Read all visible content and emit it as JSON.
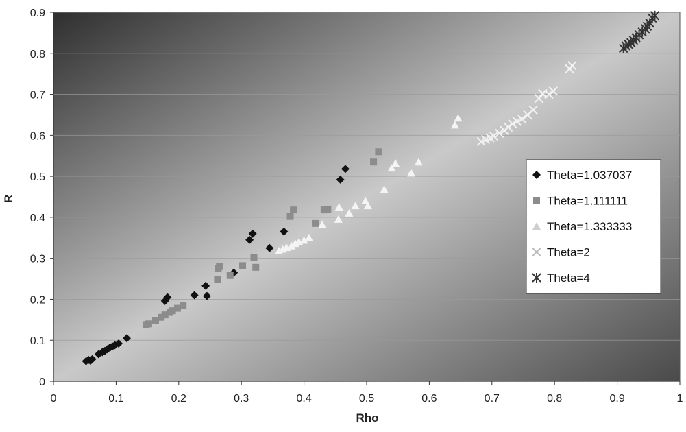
{
  "chart_data": {
    "type": "scatter",
    "xlabel": "Rho",
    "ylabel": "R",
    "xlim": [
      0,
      1
    ],
    "ylim": [
      0,
      0.9
    ],
    "x_ticks": [
      "0",
      "0.1",
      "0.2",
      "0.3",
      "0.4",
      "0.5",
      "0.6",
      "0.7",
      "0.8",
      "0.9",
      "1"
    ],
    "y_ticks": [
      "0",
      "0.1",
      "0.2",
      "0.3",
      "0.4",
      "0.5",
      "0.6",
      "0.7",
      "0.8",
      "0.9"
    ],
    "grid": "horizontal",
    "legend_position": "right",
    "series": [
      {
        "name": "Theta=1.037037",
        "marker": "diamond",
        "color": "#111111",
        "points": [
          [
            0.052,
            0.049
          ],
          [
            0.056,
            0.052
          ],
          [
            0.059,
            0.05
          ],
          [
            0.062,
            0.054
          ],
          [
            0.072,
            0.066
          ],
          [
            0.078,
            0.071
          ],
          [
            0.082,
            0.074
          ],
          [
            0.086,
            0.078
          ],
          [
            0.09,
            0.082
          ],
          [
            0.094,
            0.085
          ],
          [
            0.098,
            0.088
          ],
          [
            0.104,
            0.092
          ],
          [
            0.117,
            0.105
          ],
          [
            0.178,
            0.196
          ],
          [
            0.182,
            0.205
          ],
          [
            0.225,
            0.21
          ],
          [
            0.243,
            0.233
          ],
          [
            0.245,
            0.208
          ],
          [
            0.288,
            0.265
          ],
          [
            0.313,
            0.345
          ],
          [
            0.318,
            0.36
          ],
          [
            0.345,
            0.325
          ],
          [
            0.368,
            0.365
          ],
          [
            0.458,
            0.492
          ],
          [
            0.466,
            0.518
          ]
        ]
      },
      {
        "name": "Theta=1.111111",
        "marker": "square",
        "color": "#8c8c8c",
        "points": [
          [
            0.148,
            0.138
          ],
          [
            0.152,
            0.14
          ],
          [
            0.163,
            0.148
          ],
          [
            0.172,
            0.156
          ],
          [
            0.178,
            0.162
          ],
          [
            0.186,
            0.168
          ],
          [
            0.19,
            0.172
          ],
          [
            0.198,
            0.178
          ],
          [
            0.207,
            0.185
          ],
          [
            0.262,
            0.248
          ],
          [
            0.263,
            0.275
          ],
          [
            0.265,
            0.28
          ],
          [
            0.282,
            0.258
          ],
          [
            0.302,
            0.282
          ],
          [
            0.32,
            0.302
          ],
          [
            0.323,
            0.278
          ],
          [
            0.378,
            0.402
          ],
          [
            0.383,
            0.418
          ],
          [
            0.418,
            0.385
          ],
          [
            0.432,
            0.418
          ],
          [
            0.438,
            0.42
          ],
          [
            0.511,
            0.535
          ],
          [
            0.519,
            0.56
          ]
        ]
      },
      {
        "name": "Theta=1.333333",
        "marker": "triangle",
        "color": "#f4f4f4",
        "points": [
          [
            0.36,
            0.318
          ],
          [
            0.366,
            0.322
          ],
          [
            0.372,
            0.326
          ],
          [
            0.38,
            0.33
          ],
          [
            0.386,
            0.336
          ],
          [
            0.392,
            0.34
          ],
          [
            0.4,
            0.344
          ],
          [
            0.408,
            0.35
          ],
          [
            0.429,
            0.382
          ],
          [
            0.455,
            0.395
          ],
          [
            0.456,
            0.425
          ],
          [
            0.472,
            0.41
          ],
          [
            0.482,
            0.428
          ],
          [
            0.498,
            0.44
          ],
          [
            0.502,
            0.428
          ],
          [
            0.528,
            0.468
          ],
          [
            0.54,
            0.52
          ],
          [
            0.546,
            0.532
          ],
          [
            0.571,
            0.508
          ],
          [
            0.583,
            0.535
          ],
          [
            0.641,
            0.625
          ],
          [
            0.646,
            0.642
          ]
        ]
      },
      {
        "name": "Theta=2",
        "marker": "x",
        "color": "#f2f2f2",
        "points": [
          [
            0.683,
            0.585
          ],
          [
            0.69,
            0.59
          ],
          [
            0.697,
            0.594
          ],
          [
            0.703,
            0.598
          ],
          [
            0.712,
            0.605
          ],
          [
            0.72,
            0.612
          ],
          [
            0.726,
            0.62
          ],
          [
            0.733,
            0.628
          ],
          [
            0.74,
            0.634
          ],
          [
            0.748,
            0.64
          ],
          [
            0.757,
            0.65
          ],
          [
            0.766,
            0.662
          ],
          [
            0.775,
            0.69
          ],
          [
            0.781,
            0.702
          ],
          [
            0.791,
            0.7
          ],
          [
            0.798,
            0.708
          ],
          [
            0.824,
            0.762
          ],
          [
            0.828,
            0.77
          ]
        ]
      },
      {
        "name": "Theta=4",
        "marker": "asterisk",
        "color": "#333333",
        "points": [
          [
            0.91,
            0.812
          ],
          [
            0.914,
            0.818
          ],
          [
            0.918,
            0.822
          ],
          [
            0.922,
            0.826
          ],
          [
            0.926,
            0.832
          ],
          [
            0.93,
            0.838
          ],
          [
            0.935,
            0.845
          ],
          [
            0.94,
            0.852
          ],
          [
            0.945,
            0.86
          ],
          [
            0.948,
            0.866
          ],
          [
            0.952,
            0.874
          ],
          [
            0.956,
            0.886
          ],
          [
            0.96,
            0.892
          ]
        ]
      }
    ]
  }
}
